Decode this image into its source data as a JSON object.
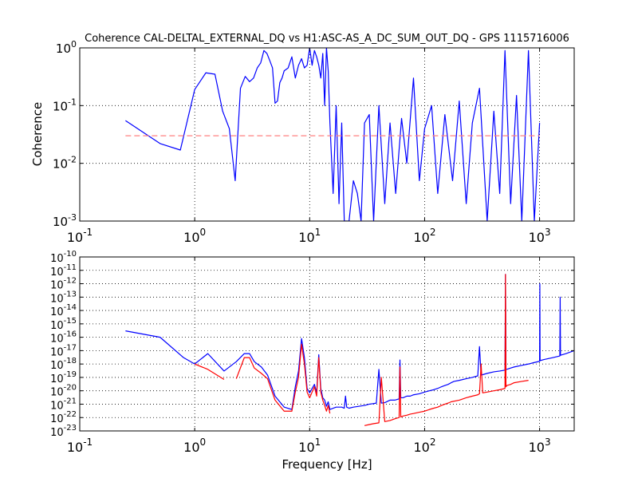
{
  "figure": {
    "title": "Coherence CAL-DELTAL_EXTERNAL_DQ vs H1:ASC-AS_A_DC_SUM_OUT_DQ - GPS 1115716006"
  },
  "colors": {
    "coherence": "#0000ff",
    "threshold": "#ff8080",
    "asd_primary": "#0000ff",
    "asd_reference": "#ff0000",
    "grid": "#000000"
  },
  "chart_data": [
    {
      "type": "line",
      "title": "Coherence CAL-DELTAL_EXTERNAL_DQ vs H1:ASC-AS_A_DC_SUM_OUT_DQ - GPS 1115716006",
      "xlabel": "",
      "ylabel": "Coherence",
      "xscale": "log",
      "yscale": "log",
      "xlim": [
        0.1,
        2000
      ],
      "ylim": [
        0.001,
        1
      ],
      "grid": true,
      "x_ticks": [
        {
          "value": 0.1,
          "base": "10",
          "exp": "-1"
        },
        {
          "value": 1,
          "base": "10",
          "exp": "0"
        },
        {
          "value": 10,
          "base": "10",
          "exp": "1"
        },
        {
          "value": 100,
          "base": "10",
          "exp": "2"
        },
        {
          "value": 1000,
          "base": "10",
          "exp": "3"
        }
      ],
      "y_ticks": [
        {
          "value": 0.001,
          "base": "10",
          "exp": "-3"
        },
        {
          "value": 0.01,
          "base": "10",
          "exp": "-2"
        },
        {
          "value": 0.1,
          "base": "10",
          "exp": "-1"
        },
        {
          "value": 1,
          "base": "10",
          "exp": "0"
        }
      ],
      "series": [
        {
          "style": "solid",
          "x": [
            0.25,
            0.5,
            0.75,
            1.0,
            1.25,
            1.5,
            1.75,
            2.0,
            2.25,
            2.5,
            2.75,
            3.0,
            3.25,
            3.5,
            3.75,
            4.0,
            4.25,
            4.5,
            4.75,
            5.0,
            5.25,
            5.5,
            5.75,
            6.0,
            6.5,
            7.0,
            7.5,
            8.0,
            8.5,
            9.0,
            9.5,
            10,
            10.5,
            11,
            11.5,
            12,
            12.5,
            13,
            13.5,
            14,
            14.5,
            15,
            16,
            17,
            18,
            19,
            20,
            22,
            24,
            26,
            28,
            30,
            33,
            36,
            40,
            45,
            50,
            56,
            63,
            70,
            80,
            90,
            100,
            115,
            130,
            150,
            175,
            200,
            230,
            260,
            300,
            350,
            400,
            450,
            500,
            560,
            630,
            700,
            800,
            900,
            1000
          ],
          "y": [
            0.055,
            0.022,
            0.017,
            0.19,
            0.37,
            0.35,
            0.08,
            0.04,
            0.005,
            0.2,
            0.32,
            0.26,
            0.3,
            0.45,
            0.55,
            0.9,
            0.8,
            0.6,
            0.45,
            0.11,
            0.12,
            0.25,
            0.3,
            0.4,
            0.45,
            0.7,
            0.3,
            0.5,
            0.65,
            0.45,
            0.5,
            1.0,
            0.5,
            0.9,
            0.7,
            0.5,
            0.3,
            0.8,
            0.1,
            1.0,
            0.4,
            0.05,
            0.003,
            0.1,
            0.002,
            0.05,
            0.001,
            0.001,
            0.005,
            0.003,
            0.001,
            0.05,
            0.07,
            0.001,
            0.1,
            0.002,
            0.05,
            0.003,
            0.06,
            0.01,
            0.3,
            0.005,
            0.04,
            0.1,
            0.003,
            0.07,
            0.005,
            0.12,
            0.002,
            0.05,
            0.2,
            0.001,
            0.08,
            0.003,
            0.9,
            0.002,
            0.15,
            0.001,
            0.9,
            0.001,
            0.05
          ]
        },
        {
          "style": "dashed",
          "x": [
            0.25,
            1000
          ],
          "y": [
            0.03,
            0.03
          ]
        }
      ]
    },
    {
      "type": "line",
      "title": "",
      "xlabel": "Frequency [Hz]",
      "ylabel": "",
      "xscale": "log",
      "yscale": "log",
      "xlim": [
        0.1,
        2000
      ],
      "ylim": [
        1e-23,
        1e-10
      ],
      "grid": true,
      "x_ticks": [
        {
          "value": 0.1,
          "base": "10",
          "exp": "-1"
        },
        {
          "value": 1,
          "base": "10",
          "exp": "0"
        },
        {
          "value": 10,
          "base": "10",
          "exp": "1"
        },
        {
          "value": 100,
          "base": "10",
          "exp": "2"
        },
        {
          "value": 1000,
          "base": "10",
          "exp": "3"
        }
      ],
      "y_ticks": [
        {
          "value": 1e-23,
          "base": "10",
          "exp": "-23"
        },
        {
          "value": 1e-22,
          "base": "10",
          "exp": "-22"
        },
        {
          "value": 1e-21,
          "base": "10",
          "exp": "-21"
        },
        {
          "value": 1e-20,
          "base": "10",
          "exp": "-20"
        },
        {
          "value": 1e-19,
          "base": "10",
          "exp": "-19"
        },
        {
          "value": 1e-18,
          "base": "10",
          "exp": "-18"
        },
        {
          "value": 1e-17,
          "base": "10",
          "exp": "-17"
        },
        {
          "value": 1e-16,
          "base": "10",
          "exp": "-16"
        },
        {
          "value": 1e-15,
          "base": "10",
          "exp": "-15"
        },
        {
          "value": 1e-14,
          "base": "10",
          "exp": "-14"
        },
        {
          "value": 1e-13,
          "base": "10",
          "exp": "-13"
        },
        {
          "value": 1e-12,
          "base": "10",
          "exp": "-12"
        },
        {
          "value": 1e-11,
          "base": "10",
          "exp": "-11"
        },
        {
          "value": 1e-10,
          "base": "10",
          "exp": "-10"
        }
      ],
      "series": [
        {
          "style": "solid",
          "x": [
            0.25,
            0.5,
            0.8,
            1.0,
            1.3,
            1.8,
            2.3,
            2.7,
            3.0,
            3.3,
            3.8,
            4.3,
            5.0,
            6.0,
            7.0,
            7.5,
            8.0,
            8.5,
            9.0,
            9.5,
            10.0,
            10.5,
            11.0,
            11.5,
            12.0,
            12.5,
            13.0,
            13.5,
            14.0,
            14.5,
            15.0,
            16,
            17,
            18,
            19,
            20,
            20.5,
            21,
            22,
            24,
            27,
            30,
            33,
            36,
            38,
            40,
            42,
            45,
            50,
            55,
            60,
            61,
            62,
            65,
            70,
            75,
            80,
            90,
            100,
            110,
            120,
            130,
            140,
            150,
            160,
            170,
            180,
            200,
            230,
            260,
            290,
            300,
            310,
            320,
            350,
            400,
            450,
            500,
            505,
            510,
            520,
            560,
            600,
            700,
            800,
            900,
            1000,
            1005,
            1010,
            1100,
            1300,
            1500,
            1510,
            1520,
            1700,
            2000
          ],
          "y": [
            3e-16,
            1e-16,
            3e-18,
            1e-18,
            6e-18,
            3e-19,
            1.5e-18,
            6e-18,
            6e-18,
            1.5e-18,
            6e-19,
            1.5e-19,
            4e-21,
            6e-22,
            4e-22,
            2e-20,
            3e-19,
            8e-17,
            3e-18,
            1.5e-20,
            7e-21,
            1.5e-20,
            3e-20,
            7e-21,
            5e-18,
            1.5e-20,
            3e-21,
            2e-21,
            7e-22,
            1.5e-21,
            4e-22,
            5e-22,
            6e-22,
            6e-22,
            6e-22,
            5e-22,
            4e-21,
            6e-22,
            5e-22,
            6e-22,
            7e-22,
            8e-22,
            1e-21,
            1.1e-21,
            1.2e-21,
            4e-19,
            1.2e-21,
            1.3e-21,
            2e-21,
            2e-21,
            2.5e-21,
            2e-18,
            3e-21,
            3e-21,
            4e-21,
            4e-21,
            5e-21,
            6e-21,
            8e-21,
            1e-20,
            1.2e-20,
            1.5e-20,
            2e-20,
            2.5e-20,
            3e-20,
            4e-20,
            5e-20,
            6e-20,
            8e-20,
            1e-19,
            1.3e-19,
            2e-17,
            1.5e-19,
            1.6e-19,
            2e-19,
            2.6e-19,
            3e-19,
            3.5e-19,
            5e-12,
            4e-19,
            4e-19,
            5e-19,
            6e-19,
            8e-19,
            1e-18,
            1.3e-18,
            1.6e-18,
            1e-12,
            1.8e-18,
            2.2e-18,
            3e-18,
            4e-18,
            1e-13,
            4.5e-18,
            6e-18,
            1e-17
          ]
        },
        {
          "style": "solid",
          "x": [
            1.0,
            1.3,
            1.8
          ],
          "y": [
            1e-18,
            4e-19,
            7e-20
          ]
        },
        {
          "style": "solid",
          "x": [
            2.3,
            2.7,
            3.0,
            3.3,
            3.8,
            4.3,
            5.0,
            6.0,
            7.0,
            7.5,
            8.0,
            8.5,
            9.0,
            9.5,
            10.0,
            10.5,
            11.0,
            11.5,
            12.0,
            12.5,
            13.0,
            13.5,
            14.0,
            14.5,
            15.0
          ],
          "y": [
            8e-20,
            3e-18,
            3e-18,
            5e-19,
            2e-19,
            8e-20,
            2e-21,
            3e-22,
            3e-22,
            8e-21,
            1e-19,
            3e-17,
            1e-18,
            8e-21,
            3e-21,
            8e-21,
            2e-20,
            4e-21,
            3e-18,
            8e-21,
            2e-21,
            8e-22,
            3e-22,
            8e-22,
            2e-22
          ]
        },
        {
          "style": "solid",
          "x": [
            30,
            33,
            36,
            40,
            42,
            45,
            50,
            55,
            60,
            61,
            62,
            65,
            70,
            75,
            80,
            90,
            100,
            110,
            120,
            130,
            140,
            150,
            160,
            170,
            200,
            230,
            260,
            290,
            300,
            310,
            320,
            350,
            400,
            450,
            500,
            505,
            510,
            520,
            560,
            600,
            700,
            800
          ],
          "y": [
            2.5e-23,
            3e-23,
            3.5e-23,
            4e-23,
            1e-19,
            5e-23,
            6e-23,
            8e-23,
            1e-22,
            6e-19,
            1.1e-22,
            1.3e-22,
            1.5e-22,
            1.8e-22,
            2e-22,
            2.5e-22,
            3e-22,
            4e-22,
            5e-22,
            6e-22,
            8e-22,
            1e-21,
            1.2e-21,
            1.5e-21,
            2e-21,
            3e-21,
            4e-21,
            5e-21,
            6e-21,
            1e-18,
            7e-21,
            8e-21,
            1e-20,
            1.2e-20,
            1.5e-20,
            5e-12,
            2e-20,
            2.5e-20,
            3e-20,
            4e-20,
            5e-20,
            6e-20
          ]
        }
      ]
    }
  ]
}
